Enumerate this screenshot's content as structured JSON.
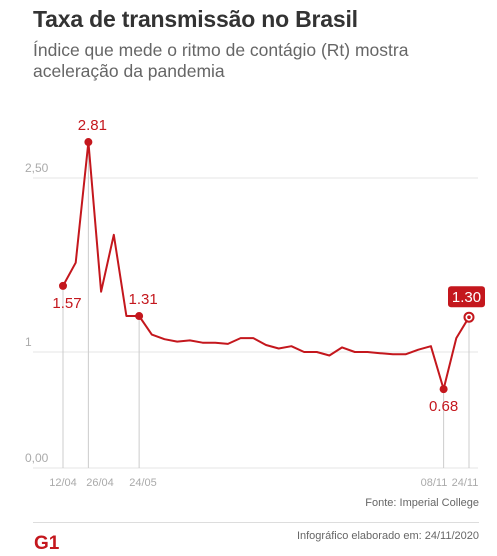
{
  "header": {
    "title": "Taxa de transmissão no Brasil",
    "subtitle": "Índice que mede o ritmo de contágio (Rt) mostra aceleração da pandemia"
  },
  "footer": {
    "source": "Fonte: Imperial College",
    "credit": "Infográfico elaborado em: 24/11/2020",
    "logo_text": "G1"
  },
  "colors": {
    "line": "#c4171d",
    "grid": "#e6e6e6",
    "axis_text": "#aaaaaa",
    "label_text": "#c4171d"
  },
  "chart_data": {
    "type": "line",
    "title": "Taxa de transmissão no Brasil",
    "ylim": [
      0,
      3
    ],
    "yticks": [
      0,
      1,
      2.5
    ],
    "ytick_labels": [
      "0,00",
      "1",
      "2,50"
    ],
    "xticks": [
      "12/04",
      "26/04",
      "24/05",
      "08/11",
      "24/11"
    ],
    "grid": true,
    "series": [
      {
        "values": [
          1.57,
          1.77,
          2.81,
          1.52,
          2.01,
          1.31,
          1.31,
          1.15,
          1.11,
          1.09,
          1.1,
          1.08,
          1.08,
          1.07,
          1.12,
          1.12,
          1.06,
          1.03,
          1.05,
          1.0,
          1.0,
          0.97,
          1.04,
          1.0,
          1.0,
          0.99,
          0.98,
          0.98,
          1.02,
          1.05,
          0.68,
          1.12,
          1.3
        ]
      }
    ],
    "annotations": [
      {
        "label": "1.57",
        "value": 1.57,
        "point": 0,
        "position": "below"
      },
      {
        "label": "2.81",
        "value": 2.81,
        "point": 2,
        "position": "above"
      },
      {
        "label": "1.31",
        "value": 1.31,
        "point": 6,
        "position": "above"
      },
      {
        "label": "0.68",
        "value": 0.68,
        "point": 30,
        "position": "below"
      },
      {
        "label": "1.30",
        "value": 1.3,
        "point": 32,
        "position": "highlight"
      }
    ]
  }
}
